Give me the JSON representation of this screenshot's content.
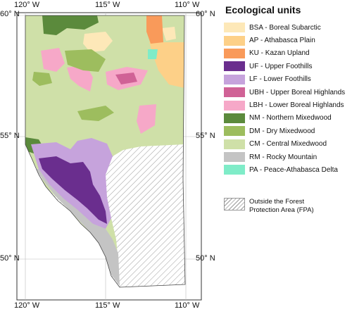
{
  "legend": {
    "title": "Ecological units",
    "items": [
      {
        "code": "BSA",
        "label": "BSA - Boreal Subarctic",
        "color": "#fde8b8"
      },
      {
        "code": "AP",
        "label": "AP - Athabasca Plain",
        "color": "#fdd088"
      },
      {
        "code": "KU",
        "label": "KU - Kazan Upland",
        "color": "#f99a5a"
      },
      {
        "code": "UF",
        "label": "UF - Upper Foothills",
        "color": "#6a2e8e"
      },
      {
        "code": "LF",
        "label": "LF - Lower Foothills",
        "color": "#c6a3dc"
      },
      {
        "code": "UBH",
        "label": "UBH - Upper Boreal Highlands",
        "color": "#d06296"
      },
      {
        "code": "LBH",
        "label": "LBH - Lower Boreal Highlands",
        "color": "#f6a8c8"
      },
      {
        "code": "NM",
        "label": "NM - Northern Mixedwood",
        "color": "#5b8a3c"
      },
      {
        "code": "DM",
        "label": "DM - Dry Mixedwood",
        "color": "#9dbd5e"
      },
      {
        "code": "CM",
        "label": "CM - Central Mixedwood",
        "color": "#cfe0a8"
      },
      {
        "code": "RM",
        "label": "RM - Rocky Mountain",
        "color": "#c4c4c4"
      },
      {
        "code": "PA",
        "label": "PA - Peace-Athabasca Delta",
        "color": "#7fecc8"
      }
    ],
    "fpa_line1": "Outside the Forest",
    "fpa_line2": "Protection Area (FPA)"
  },
  "axes": {
    "x_top": [
      "120° W",
      "115° W",
      "110° W"
    ],
    "x_bottom": [
      "120° W",
      "115° W",
      "110° W"
    ],
    "y_left": [
      "60° N",
      "55° N",
      "50° N"
    ],
    "y_right": [
      "60° N",
      "55° N",
      "50° N"
    ]
  }
}
